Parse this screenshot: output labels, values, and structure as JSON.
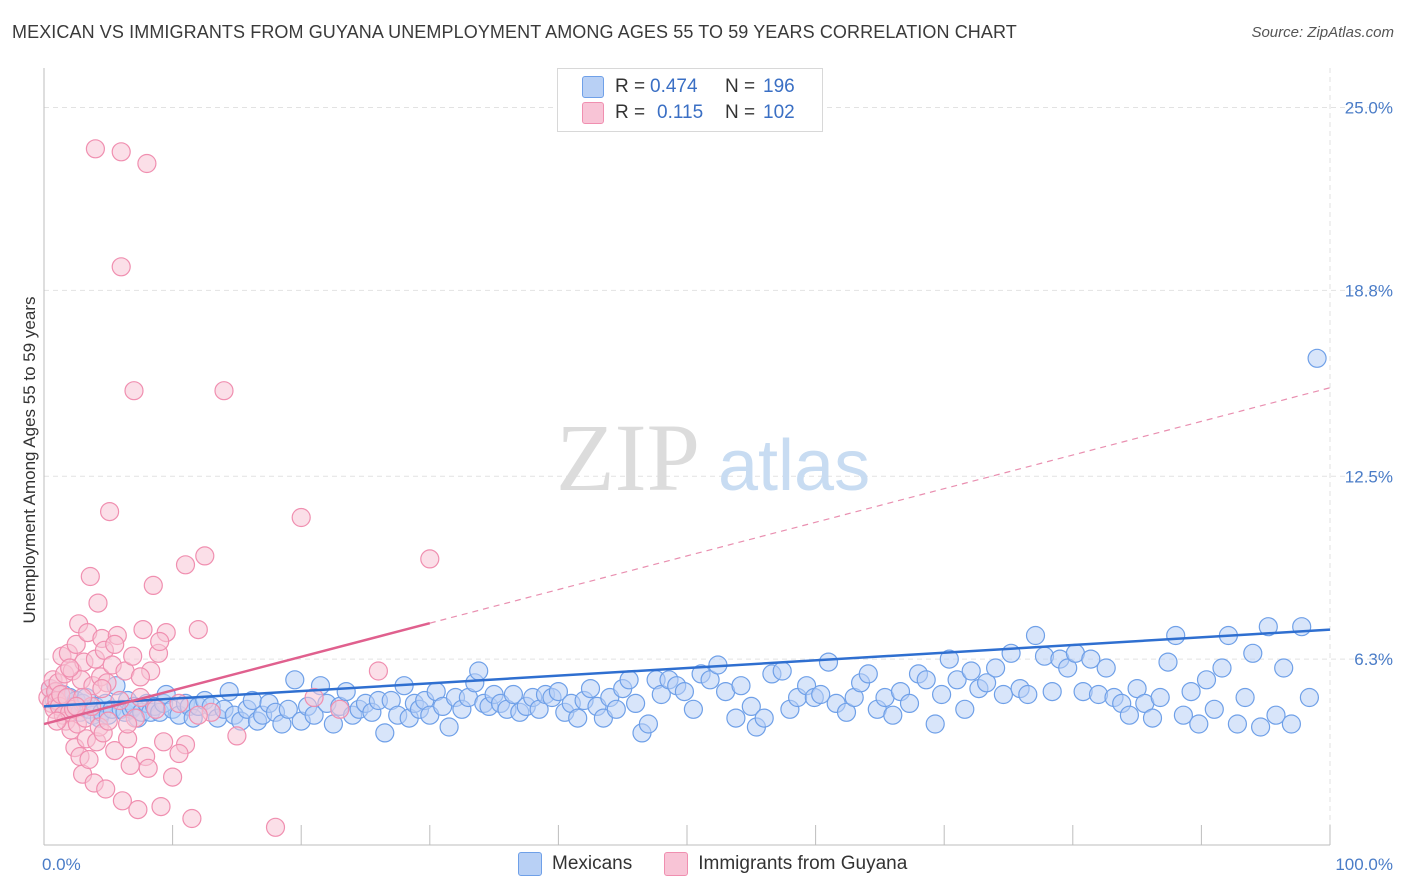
{
  "title": "MEXICAN VS IMMIGRANTS FROM GUYANA UNEMPLOYMENT AMONG AGES 55 TO 59 YEARS CORRELATION CHART",
  "source": "Source: ZipAtlas.com",
  "watermark": {
    "zip": "ZIP",
    "atlas": "atlas"
  },
  "stats": [
    {
      "r_label": "R =",
      "r_value": "0.474",
      "n_label": "N =",
      "n_value": "196",
      "color": "#6fa0e8",
      "fill": "#b8d0f5"
    },
    {
      "r_label": "R =",
      "r_value": "0.115",
      "n_label": "N =",
      "n_value": "102",
      "color": "#f08fb0",
      "fill": "#f8c4d6"
    }
  ],
  "legend": [
    {
      "label": "Mexicans",
      "fill": "#b8d0f5",
      "stroke": "#6fa0e8"
    },
    {
      "label": "Immigrants from Guyana",
      "fill": "#f8c4d6",
      "stroke": "#f08fb0"
    }
  ],
  "chart_data": {
    "type": "scatter",
    "title": "MEXICAN VS IMMIGRANTS FROM GUYANA UNEMPLOYMENT AMONG AGES 55 TO 59 YEARS CORRELATION CHART",
    "xlabel": "",
    "ylabel": "Unemployment Among Ages 55 to 59 years",
    "xlim": [
      0,
      100
    ],
    "ylim": [
      0,
      26.0
    ],
    "x_tick_labels": [
      {
        "value": 0,
        "label": "0.0%"
      },
      {
        "value": 100,
        "label": "100.0%"
      }
    ],
    "y_tick_labels": [
      {
        "value": 6.3,
        "label": "6.3%"
      },
      {
        "value": 12.5,
        "label": "12.5%"
      },
      {
        "value": 18.8,
        "label": "18.8%"
      },
      {
        "value": 25.0,
        "label": "25.0%"
      }
    ],
    "grid": true,
    "legend_position": "bottom-center",
    "series": [
      {
        "name": "Mexicans",
        "color": "#6fa0e8",
        "fill": "#b8d0f5",
        "trend": {
          "x": [
            0,
            100
          ],
          "y": [
            4.7,
            7.3
          ],
          "solid_until": 100
        },
        "points": [
          [
            0.5,
            5.3
          ],
          [
            0.8,
            4.9
          ],
          [
            1.0,
            5.2
          ],
          [
            1.2,
            4.8
          ],
          [
            1.5,
            5.1
          ],
          [
            1.8,
            4.6
          ],
          [
            2.0,
            5.0
          ],
          [
            2.3,
            4.7
          ],
          [
            2.5,
            4.9
          ],
          [
            2.8,
            4.5
          ],
          [
            3.0,
            4.8
          ],
          [
            3.3,
            5.0
          ],
          [
            3.5,
            4.6
          ],
          [
            3.8,
            4.4
          ],
          [
            4.0,
            4.7
          ],
          [
            4.3,
            4.3
          ],
          [
            4.5,
            4.5
          ],
          [
            4.8,
            4.8
          ],
          [
            5.0,
            4.4
          ],
          [
            5.3,
            4.6
          ],
          [
            5.6,
            5.4
          ],
          [
            6.0,
            4.6
          ],
          [
            6.3,
            4.5
          ],
          [
            6.5,
            4.9
          ],
          [
            6.8,
            4.6
          ],
          [
            7.0,
            4.7
          ],
          [
            7.3,
            4.3
          ],
          [
            7.6,
            4.5
          ],
          [
            8.0,
            4.8
          ],
          [
            8.3,
            4.5
          ],
          [
            8.6,
            4.7
          ],
          [
            9.0,
            4.5
          ],
          [
            9.3,
            4.8
          ],
          [
            9.5,
            5.1
          ],
          [
            10.0,
            4.6
          ],
          [
            10.5,
            4.4
          ],
          [
            11.0,
            4.8
          ],
          [
            11.3,
            4.7
          ],
          [
            11.6,
            4.3
          ],
          [
            12.0,
            4.7
          ],
          [
            12.5,
            4.9
          ],
          [
            13.0,
            4.7
          ],
          [
            13.5,
            4.3
          ],
          [
            14.0,
            4.6
          ],
          [
            14.4,
            5.2
          ],
          [
            14.8,
            4.4
          ],
          [
            15.3,
            4.2
          ],
          [
            15.8,
            4.6
          ],
          [
            16.2,
            4.9
          ],
          [
            16.6,
            4.2
          ],
          [
            17.0,
            4.4
          ],
          [
            17.5,
            4.8
          ],
          [
            18.0,
            4.5
          ],
          [
            18.5,
            4.1
          ],
          [
            19.0,
            4.6
          ],
          [
            19.5,
            5.6
          ],
          [
            20.0,
            4.2
          ],
          [
            20.5,
            4.7
          ],
          [
            21.0,
            4.4
          ],
          [
            21.5,
            5.4
          ],
          [
            22.0,
            4.8
          ],
          [
            22.5,
            4.1
          ],
          [
            23.0,
            4.7
          ],
          [
            23.5,
            5.2
          ],
          [
            24.0,
            4.4
          ],
          [
            24.5,
            4.6
          ],
          [
            25.0,
            4.8
          ],
          [
            25.5,
            4.5
          ],
          [
            26.0,
            4.9
          ],
          [
            26.5,
            3.8
          ],
          [
            27.0,
            4.9
          ],
          [
            27.5,
            4.4
          ],
          [
            28.0,
            5.4
          ],
          [
            28.4,
            4.3
          ],
          [
            28.8,
            4.8
          ],
          [
            29.2,
            4.6
          ],
          [
            29.6,
            4.9
          ],
          [
            30.0,
            4.4
          ],
          [
            30.5,
            5.2
          ],
          [
            31.0,
            4.7
          ],
          [
            31.5,
            4.0
          ],
          [
            32.0,
            5.0
          ],
          [
            32.5,
            4.6
          ],
          [
            33.0,
            5.0
          ],
          [
            33.5,
            5.5
          ],
          [
            33.8,
            5.9
          ],
          [
            34.2,
            4.8
          ],
          [
            34.6,
            4.7
          ],
          [
            35.0,
            5.1
          ],
          [
            35.5,
            4.8
          ],
          [
            36.0,
            4.6
          ],
          [
            36.5,
            5.1
          ],
          [
            37.0,
            4.5
          ],
          [
            37.5,
            4.7
          ],
          [
            38.0,
            5.0
          ],
          [
            38.5,
            4.6
          ],
          [
            39.0,
            5.1
          ],
          [
            39.5,
            5.0
          ],
          [
            40.0,
            5.2
          ],
          [
            40.5,
            4.5
          ],
          [
            41.0,
            4.8
          ],
          [
            41.5,
            4.3
          ],
          [
            42.0,
            4.9
          ],
          [
            42.5,
            5.3
          ],
          [
            43.0,
            4.7
          ],
          [
            43.5,
            4.3
          ],
          [
            44.0,
            5.0
          ],
          [
            44.5,
            4.6
          ],
          [
            45.0,
            5.3
          ],
          [
            45.5,
            5.6
          ],
          [
            46.0,
            4.8
          ],
          [
            46.5,
            3.8
          ],
          [
            47.0,
            4.1
          ],
          [
            47.6,
            5.6
          ],
          [
            48.0,
            5.1
          ],
          [
            48.6,
            5.6
          ],
          [
            49.2,
            5.4
          ],
          [
            49.8,
            5.2
          ],
          [
            50.5,
            4.6
          ],
          [
            51.1,
            5.8
          ],
          [
            51.8,
            5.6
          ],
          [
            52.4,
            6.1
          ],
          [
            53.0,
            5.2
          ],
          [
            53.8,
            4.3
          ],
          [
            54.2,
            5.4
          ],
          [
            55.0,
            4.7
          ],
          [
            55.4,
            4.0
          ],
          [
            56.0,
            4.3
          ],
          [
            56.6,
            5.8
          ],
          [
            57.4,
            5.9
          ],
          [
            58.0,
            4.6
          ],
          [
            58.6,
            5.0
          ],
          [
            59.3,
            5.4
          ],
          [
            59.9,
            5.0
          ],
          [
            60.4,
            5.1
          ],
          [
            61.0,
            6.2
          ],
          [
            61.6,
            4.8
          ],
          [
            62.4,
            4.5
          ],
          [
            63.0,
            5.0
          ],
          [
            63.5,
            5.5
          ],
          [
            64.1,
            5.8
          ],
          [
            64.8,
            4.6
          ],
          [
            65.4,
            5.0
          ],
          [
            66.0,
            4.4
          ],
          [
            66.6,
            5.2
          ],
          [
            67.3,
            4.8
          ],
          [
            68.0,
            5.8
          ],
          [
            68.6,
            5.6
          ],
          [
            69.3,
            4.1
          ],
          [
            69.8,
            5.1
          ],
          [
            70.4,
            6.3
          ],
          [
            71.0,
            5.6
          ],
          [
            71.6,
            4.6
          ],
          [
            72.1,
            5.9
          ],
          [
            72.7,
            5.3
          ],
          [
            73.3,
            5.5
          ],
          [
            74.0,
            6.0
          ],
          [
            74.6,
            5.1
          ],
          [
            75.2,
            6.5
          ],
          [
            75.9,
            5.3
          ],
          [
            76.5,
            5.1
          ],
          [
            77.1,
            7.1
          ],
          [
            77.8,
            6.4
          ],
          [
            78.4,
            5.2
          ],
          [
            79.0,
            6.3
          ],
          [
            79.6,
            6.0
          ],
          [
            80.2,
            6.5
          ],
          [
            80.8,
            5.2
          ],
          [
            81.4,
            6.3
          ],
          [
            82.0,
            5.1
          ],
          [
            82.6,
            6.0
          ],
          [
            83.2,
            5.0
          ],
          [
            83.8,
            4.8
          ],
          [
            84.4,
            4.4
          ],
          [
            85.0,
            5.3
          ],
          [
            85.6,
            4.8
          ],
          [
            86.2,
            4.3
          ],
          [
            86.8,
            5.0
          ],
          [
            87.4,
            6.2
          ],
          [
            88.0,
            7.1
          ],
          [
            88.6,
            4.4
          ],
          [
            89.2,
            5.2
          ],
          [
            89.8,
            4.1
          ],
          [
            90.4,
            5.6
          ],
          [
            91.0,
            4.6
          ],
          [
            91.6,
            6.0
          ],
          [
            92.1,
            7.1
          ],
          [
            92.8,
            4.1
          ],
          [
            93.4,
            5.0
          ],
          [
            94.0,
            6.5
          ],
          [
            94.6,
            4.0
          ],
          [
            95.2,
            7.4
          ],
          [
            95.8,
            4.4
          ],
          [
            96.4,
            6.0
          ],
          [
            97.0,
            4.1
          ],
          [
            97.8,
            7.4
          ],
          [
            98.4,
            5.0
          ],
          [
            99.0,
            16.5
          ]
        ]
      },
      {
        "name": "Immigrants from Guyana",
        "color": "#f08fb0",
        "fill": "#f8c4d6",
        "trend": {
          "x": [
            0,
            100
          ],
          "y": [
            4.1,
            15.5
          ],
          "solid_until": 30
        },
        "points": [
          [
            0.3,
            5.0
          ],
          [
            0.5,
            5.3
          ],
          [
            0.6,
            4.8
          ],
          [
            0.7,
            5.6
          ],
          [
            0.8,
            4.6
          ],
          [
            0.9,
            5.2
          ],
          [
            1.0,
            4.9
          ],
          [
            1.1,
            5.5
          ],
          [
            1.2,
            4.7
          ],
          [
            1.3,
            5.1
          ],
          [
            1.4,
            6.4
          ],
          [
            1.5,
            4.4
          ],
          [
            1.6,
            5.8
          ],
          [
            1.7,
            4.2
          ],
          [
            1.8,
            5.0
          ],
          [
            1.9,
            6.5
          ],
          [
            2.0,
            4.5
          ],
          [
            2.1,
            3.9
          ],
          [
            2.2,
            5.9
          ],
          [
            2.3,
            4.6
          ],
          [
            2.4,
            3.3
          ],
          [
            2.5,
            6.8
          ],
          [
            2.6,
            4.1
          ],
          [
            2.7,
            7.5
          ],
          [
            2.8,
            3.0
          ],
          [
            2.9,
            5.6
          ],
          [
            3.0,
            2.4
          ],
          [
            3.1,
            6.2
          ],
          [
            3.2,
            4.3
          ],
          [
            3.3,
            3.6
          ],
          [
            3.4,
            7.2
          ],
          [
            3.5,
            2.9
          ],
          [
            3.6,
            9.1
          ],
          [
            3.7,
            4.7
          ],
          [
            3.8,
            5.4
          ],
          [
            3.9,
            2.1
          ],
          [
            4.0,
            6.3
          ],
          [
            4.1,
            3.5
          ],
          [
            4.2,
            8.2
          ],
          [
            4.3,
            4.0
          ],
          [
            4.4,
            5.7
          ],
          [
            4.5,
            7.0
          ],
          [
            4.6,
            3.8
          ],
          [
            4.7,
            6.6
          ],
          [
            4.8,
            1.9
          ],
          [
            4.9,
            5.5
          ],
          [
            5.0,
            4.2
          ],
          [
            5.1,
            11.3
          ],
          [
            5.3,
            6.1
          ],
          [
            5.5,
            3.2
          ],
          [
            5.7,
            7.1
          ],
          [
            5.9,
            4.9
          ],
          [
            6.1,
            1.5
          ],
          [
            6.3,
            5.9
          ],
          [
            6.5,
            3.6
          ],
          [
            6.7,
            2.7
          ],
          [
            6.9,
            6.4
          ],
          [
            7.1,
            4.3
          ],
          [
            7.3,
            1.2
          ],
          [
            7.5,
            5.0
          ],
          [
            7.7,
            7.3
          ],
          [
            7.9,
            3.0
          ],
          [
            8.1,
            2.6
          ],
          [
            8.3,
            5.9
          ],
          [
            8.5,
            8.8
          ],
          [
            8.7,
            4.6
          ],
          [
            8.9,
            6.5
          ],
          [
            9.1,
            1.3
          ],
          [
            9.3,
            3.5
          ],
          [
            9.5,
            7.2
          ],
          [
            10.0,
            2.3
          ],
          [
            10.5,
            4.8
          ],
          [
            11.0,
            3.4
          ],
          [
            11.5,
            0.9
          ],
          [
            12.0,
            7.3
          ],
          [
            12.5,
            9.8
          ],
          [
            13.0,
            4.5
          ],
          [
            14.0,
            15.4
          ],
          [
            15.0,
            3.7
          ],
          [
            18.0,
            0.6
          ],
          [
            20.0,
            11.1
          ],
          [
            21.0,
            5.0
          ],
          [
            23.0,
            4.6
          ],
          [
            26.0,
            5.9
          ],
          [
            30.0,
            9.7
          ],
          [
            6.0,
            23.5
          ],
          [
            4.0,
            23.6
          ],
          [
            8.0,
            23.1
          ],
          [
            6.0,
            19.6
          ],
          [
            7.0,
            15.4
          ],
          [
            11.0,
            9.5
          ],
          [
            2.0,
            6.0
          ],
          [
            3.0,
            5.0
          ],
          [
            1.0,
            4.2
          ],
          [
            2.5,
            4.7
          ],
          [
            4.5,
            5.3
          ],
          [
            5.5,
            6.8
          ],
          [
            6.5,
            4.1
          ],
          [
            7.5,
            5.7
          ],
          [
            9.0,
            6.9
          ],
          [
            10.5,
            3.1
          ],
          [
            12.0,
            4.4
          ]
        ]
      }
    ]
  }
}
